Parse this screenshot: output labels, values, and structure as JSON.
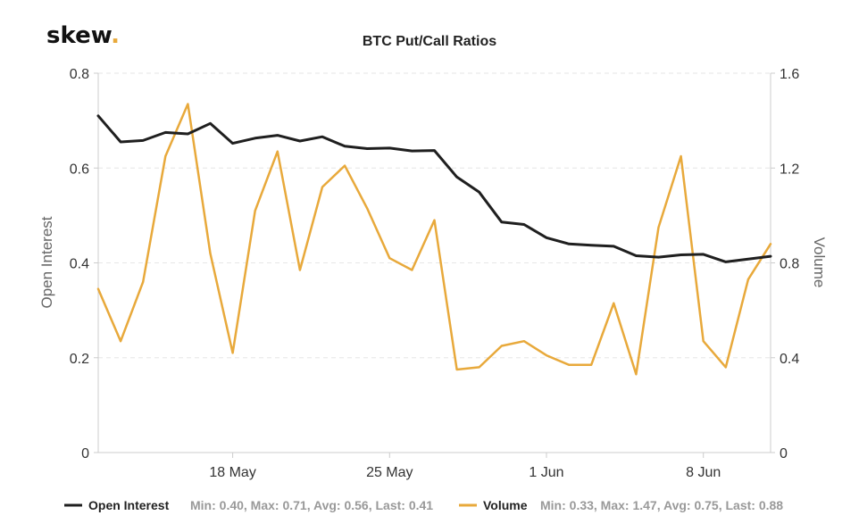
{
  "brand": {
    "logo_text": "skew",
    "logo_dot": ".",
    "dot_color": "#e8a93b"
  },
  "chart_data": {
    "type": "line",
    "title": "BTC Put/Call Ratios",
    "x_tick_labels": [
      "18 May",
      "25 May",
      "1 Jun",
      "8 Jun"
    ],
    "x": [
      "May 12",
      "May 13",
      "May 14",
      "May 15",
      "May 16",
      "May 17",
      "May 18",
      "May 19",
      "May 20",
      "May 21",
      "May 22",
      "May 23",
      "May 24",
      "May 25",
      "May 26",
      "May 27",
      "May 28",
      "May 29",
      "May 30",
      "May 31",
      "Jun 1",
      "Jun 2",
      "Jun 3",
      "Jun 4",
      "Jun 5",
      "Jun 6",
      "Jun 7",
      "Jun 8",
      "Jun 9",
      "Jun 10",
      "Jun 11"
    ],
    "y_left": {
      "label": "Open Interest",
      "lim": [
        0,
        0.8
      ],
      "ticks": [
        "0",
        "0.2",
        "0.4",
        "0.6",
        "0.8"
      ]
    },
    "y_right": {
      "label": "Volume",
      "lim": [
        0,
        1.6
      ],
      "ticks": [
        "0",
        "0.4",
        "0.8",
        "1.2",
        "1.6"
      ]
    },
    "grid": true,
    "legend_position": "bottom",
    "series": [
      {
        "name": "Open Interest",
        "axis": "left",
        "color": "#1f1f1f",
        "values": [
          0.71,
          0.655,
          0.658,
          0.675,
          0.672,
          0.694,
          0.652,
          0.663,
          0.669,
          0.657,
          0.666,
          0.646,
          0.641,
          0.642,
          0.636,
          0.637,
          0.581,
          0.549,
          0.486,
          0.481,
          0.453,
          0.44,
          0.437,
          0.435,
          0.415,
          0.412,
          0.417,
          0.418,
          0.402,
          0.408,
          0.414
        ],
        "stats": "Min: 0.40, Max: 0.71, Avg: 0.56, Last: 0.41"
      },
      {
        "name": "Volume",
        "axis": "right",
        "color": "#e8a93b",
        "values": [
          0.69,
          0.47,
          0.72,
          1.25,
          1.47,
          0.84,
          0.42,
          1.02,
          1.27,
          0.77,
          1.12,
          1.21,
          1.03,
          0.82,
          0.77,
          0.98,
          0.35,
          0.36,
          0.45,
          0.47,
          0.41,
          0.37,
          0.37,
          0.63,
          0.33,
          0.95,
          1.25,
          0.47,
          0.36,
          0.73,
          0.88
        ],
        "stats": "Min: 0.33, Max: 1.47, Avg: 0.75, Last: 0.88"
      }
    ]
  }
}
